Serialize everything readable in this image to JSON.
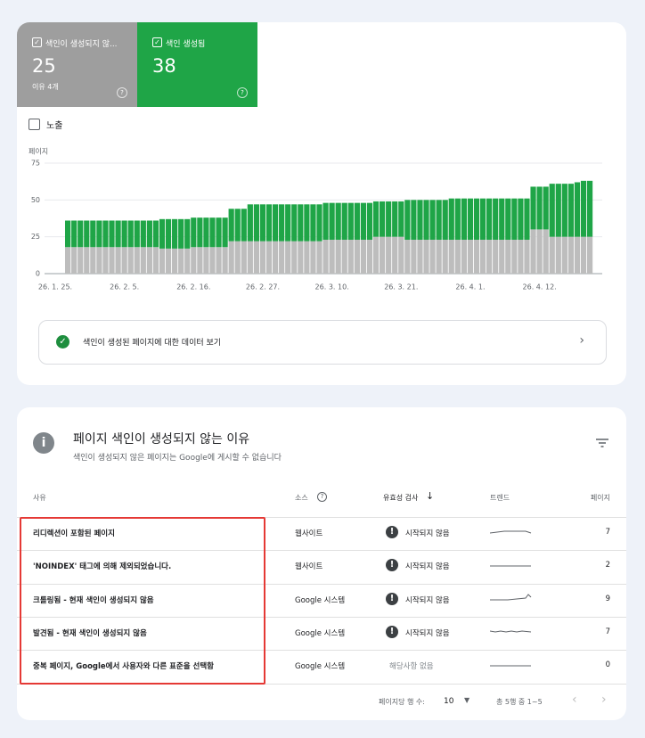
{
  "chart_data": {
    "type": "stacked-bar",
    "y_label": "페이지",
    "toggle": "노출",
    "categories": [
      "26. 1. 25.",
      null,
      null,
      null,
      null,
      null,
      null,
      null,
      null,
      null,
      null,
      "26. 2. 5.",
      null,
      null,
      null,
      null,
      null,
      null,
      null,
      null,
      null,
      null,
      "26. 2. 16.",
      null,
      null,
      null,
      null,
      null,
      null,
      null,
      null,
      null,
      null,
      "26. 2. 27.",
      null,
      null,
      null,
      null,
      null,
      null,
      null,
      null,
      null,
      null,
      "26. 3. 10.",
      null,
      null,
      null,
      null,
      null,
      null,
      null,
      null,
      null,
      null,
      "26. 3. 21.",
      null,
      null,
      null,
      null,
      null,
      null,
      null,
      null,
      null,
      null,
      "26. 4. 1.",
      null,
      null,
      null,
      null,
      null,
      null,
      null,
      null,
      null,
      null,
      "26. 4. 12.",
      null,
      null,
      null,
      null,
      null,
      null
    ],
    "series": [
      {
        "name": "색인이 생성되지 않...",
        "total": 25,
        "note": "이유 4개",
        "color": "#bdbdbd",
        "values": [
          18,
          18,
          18,
          18,
          18,
          18,
          18,
          18,
          18,
          18,
          18,
          18,
          18,
          18,
          18,
          17,
          17,
          17,
          17,
          17,
          18,
          18,
          18,
          18,
          18,
          18,
          22,
          22,
          22,
          22,
          22,
          22,
          22,
          22,
          22,
          22,
          22,
          22,
          22,
          22,
          22,
          23,
          23,
          23,
          23,
          23,
          23,
          23,
          23,
          25,
          25,
          25,
          25,
          25,
          23,
          23,
          23,
          23,
          23,
          23,
          23,
          23,
          23,
          23,
          23,
          23,
          23,
          23,
          23,
          23,
          23,
          23,
          23,
          23,
          30,
          30,
          30,
          25,
          25,
          25,
          25,
          25,
          25,
          25
        ]
      },
      {
        "name": "색인 생성됨",
        "total": 38,
        "color": "#1fa547",
        "values": [
          18,
          18,
          18,
          18,
          18,
          18,
          18,
          18,
          18,
          18,
          18,
          18,
          18,
          18,
          18,
          20,
          20,
          20,
          20,
          20,
          20,
          20,
          20,
          20,
          20,
          20,
          22,
          22,
          22,
          25,
          25,
          25,
          25,
          25,
          25,
          25,
          25,
          25,
          25,
          25,
          25,
          25,
          25,
          25,
          25,
          25,
          25,
          25,
          25,
          24,
          24,
          24,
          24,
          24,
          27,
          27,
          27,
          27,
          27,
          27,
          27,
          28,
          28,
          28,
          28,
          28,
          28,
          28,
          28,
          28,
          28,
          28,
          28,
          28,
          29,
          29,
          29,
          36,
          36,
          36,
          36,
          37,
          38,
          38
        ]
      }
    ],
    "ylim": [
      0,
      75
    ],
    "yticks": [
      0,
      25,
      50,
      75
    ],
    "grid": true
  },
  "link": "색인이 생성된 페이지에 대한 데이터 보기",
  "table": {
    "title": "페이지 색인이 생성되지 않는 이유",
    "subtitle": "색인이 생성되지 않은 페이지는 Google에 게시할 수 없습니다",
    "headers": [
      "사유",
      "소스",
      "유효성 검사",
      "트렌드",
      "페이지"
    ],
    "rows": [
      [
        "리디렉션이 포함된 페이지",
        "웹사이트",
        "시작되지 않음",
        7
      ],
      [
        "'NOINDEX' 태그에 의해 제외되었습니다.",
        "웹사이트",
        "시작되지 않음",
        2
      ],
      [
        "크롤링됨 - 현재 색인이 생성되지 않음",
        "Google 시스템",
        "시작되지 않음",
        9
      ],
      [
        "발견됨 - 현재 색인이 생성되지 않음",
        "Google 시스템",
        "시작되지 않음",
        7
      ],
      [
        "중복 페이지, Google에서 사용자와 다른 표준을 선택함",
        "Google 시스템",
        "해당사항 없음",
        0
      ]
    ],
    "footer": {
      "rows_per_page_label": "페이지당 행 수:",
      "rows_per_page": 10,
      "range": "총 5행 중 1~5"
    }
  }
}
